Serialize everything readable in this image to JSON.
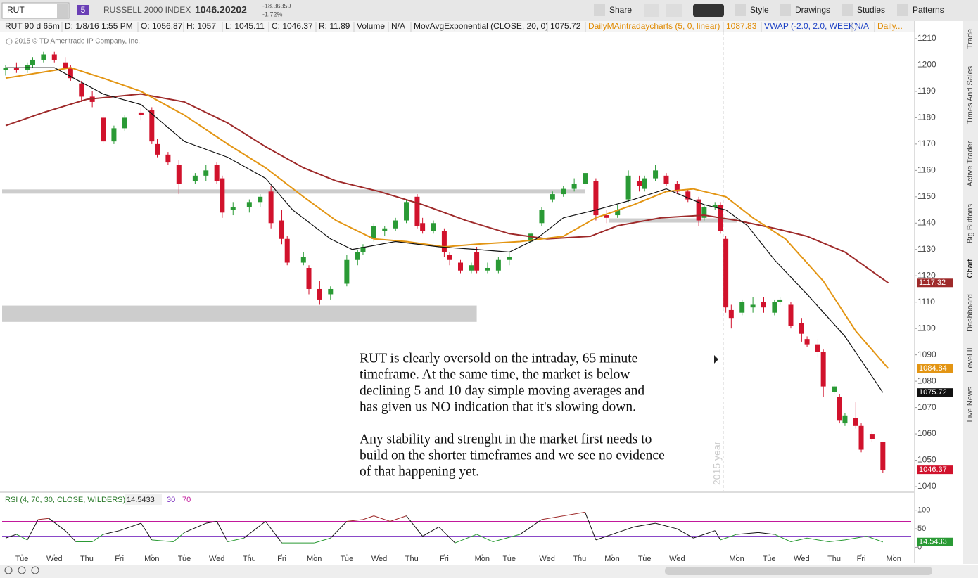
{
  "toolbar": {
    "symbol": "RUT",
    "link_group": "5",
    "description": "RUSSELL 2000 INDEX",
    "last": "1046.20202",
    "net_change": "-18.36359",
    "pct_change": "-1.72%",
    "buttons": [
      "Share",
      "Style",
      "Drawings",
      "Studies",
      "Patterns"
    ]
  },
  "info_bar": [
    {
      "text": "RUT 90 d 65m",
      "color": "#222"
    },
    {
      "text": "D: 1/8/16 1:55 PM",
      "color": "#222"
    },
    {
      "text": "O: 1056.87",
      "color": "#222"
    },
    {
      "text": "H: 1057",
      "color": "#222"
    },
    {
      "text": "L: 1045.11",
      "color": "#222"
    },
    {
      "text": "C: 1046.37",
      "color": "#222"
    },
    {
      "text": "R: 11.89",
      "color": "#222"
    },
    {
      "text": "Volume",
      "color": "#222"
    },
    {
      "text": "N/A",
      "color": "#222"
    },
    {
      "text": "MovAvgExponential (CLOSE, 20, 0)",
      "color": "#222"
    },
    {
      "text": "1075.72",
      "color": "#222"
    },
    {
      "text": "DailyMAintradaycharts (5, 0, linear)",
      "color": "#e08a00"
    },
    {
      "text": "1087.83",
      "color": "#e08a00"
    },
    {
      "text": "VWAP (-2.0, 2.0, WEEK)",
      "color": "#1a3fc4"
    },
    {
      "text": "N/A",
      "color": "#1a3fc4"
    },
    {
      "text": "Daily...",
      "color": "#e08a00"
    }
  ],
  "copyright": "2015 © TD Ameritrade IP Company, Inc.",
  "chart_data": [
    {
      "type": "candlestick",
      "up_color": "#2a9a35",
      "down_color": "#d1122c",
      "xlim": [
        0,
        168
      ],
      "ylim": [
        1038.4,
        1212.4
      ],
      "yticks": [
        1040,
        1050,
        1060,
        1070,
        1080,
        1090,
        1100,
        1110,
        1120,
        1130,
        1140,
        1150,
        1160,
        1170,
        1180,
        1190,
        1200,
        1210
      ],
      "x": [
        0,
        2,
        4,
        5,
        7,
        9,
        11,
        12,
        14,
        16,
        18,
        20,
        22,
        25,
        27,
        28,
        30,
        32,
        35,
        37,
        39,
        40,
        42,
        45,
        47,
        49,
        51,
        52,
        55,
        56,
        58,
        60,
        63,
        65,
        66,
        68,
        70,
        72,
        74,
        76,
        77,
        79,
        81,
        82,
        84,
        86,
        87,
        89,
        91,
        93,
        97,
        99,
        101,
        103,
        105,
        107,
        109,
        111,
        113,
        115,
        117,
        118,
        120,
        122,
        124,
        126,
        128,
        129,
        131,
        132,
        133,
        134,
        136,
        138,
        140,
        142,
        143,
        145,
        147,
        148,
        150,
        151,
        153,
        154,
        155,
        157,
        158,
        160,
        162
      ],
      "open": [
        1198,
        1199,
        1198,
        1200,
        1202,
        1204,
        1201,
        1199,
        1193,
        1188,
        1180,
        1171,
        1176,
        1182,
        1183,
        1170,
        1166,
        1162,
        1156,
        1158,
        1162,
        1157,
        1145,
        1146,
        1148,
        1152,
        1141,
        1134,
        1125,
        1123,
        1115,
        1113,
        1117,
        1126,
        1129,
        1134,
        1137,
        1138,
        1141,
        1150,
        1140,
        1137,
        1137,
        1128,
        1125,
        1122,
        1129,
        1122,
        1122,
        1126,
        1133,
        1140,
        1149,
        1151,
        1153,
        1155,
        1156,
        1143,
        1143,
        1149,
        1156,
        1153,
        1157,
        1158,
        1155,
        1152,
        1149,
        1142,
        1146,
        1147,
        1134,
        1107,
        1106,
        1108,
        1110,
        1106,
        1110,
        1109,
        1102,
        1096,
        1094,
        1091,
        1076,
        1074,
        1064,
        1066,
        1063,
        1060,
        1056.87
      ],
      "high": [
        1200,
        1201,
        1201,
        1203,
        1205,
        1205,
        1203,
        1200,
        1194,
        1190,
        1181,
        1177,
        1181,
        1184,
        1184,
        1172,
        1167,
        1164,
        1159,
        1162,
        1163,
        1158,
        1148,
        1149,
        1151,
        1154,
        1145,
        1135,
        1129,
        1124,
        1118,
        1116,
        1128,
        1130,
        1132,
        1140,
        1139,
        1142,
        1149,
        1151,
        1142,
        1141,
        1138,
        1129,
        1126,
        1125,
        1131,
        1125,
        1127,
        1129,
        1137,
        1146,
        1152,
        1154,
        1157,
        1160,
        1157,
        1145,
        1147,
        1160,
        1158,
        1158,
        1162,
        1159,
        1156,
        1153,
        1150,
        1147,
        1148,
        1148,
        1135,
        1109,
        1111,
        1112,
        1112,
        1111,
        1112,
        1110,
        1104,
        1097,
        1096,
        1092,
        1079,
        1075,
        1068,
        1072,
        1064,
        1061,
        1057
      ],
      "low": [
        1196,
        1197,
        1197,
        1199,
        1201,
        1201,
        1199,
        1194,
        1186,
        1184,
        1170,
        1170,
        1175,
        1179,
        1170,
        1165,
        1162,
        1151,
        1155,
        1156,
        1155,
        1142,
        1143,
        1144,
        1146,
        1138,
        1132,
        1124,
        1124,
        1113,
        1109,
        1111,
        1116,
        1124,
        1128,
        1133,
        1135,
        1137,
        1140,
        1138,
        1136,
        1136,
        1127,
        1124,
        1121,
        1121,
        1121,
        1121,
        1121,
        1124,
        1132,
        1139,
        1148,
        1150,
        1152,
        1154,
        1141,
        1140,
        1142,
        1148,
        1152,
        1152,
        1156,
        1154,
        1151,
        1148,
        1139,
        1141,
        1145,
        1136,
        1106,
        1100,
        1105,
        1106,
        1106,
        1105,
        1109,
        1100,
        1095,
        1093,
        1089,
        1074,
        1075,
        1064,
        1063,
        1062,
        1053,
        1057,
        1045.11
      ],
      "close": [
        1199,
        1198,
        1200,
        1202,
        1204,
        1202,
        1199,
        1195,
        1188,
        1186,
        1171,
        1176,
        1180,
        1181,
        1171,
        1166,
        1163,
        1155,
        1158,
        1160,
        1156,
        1144,
        1146,
        1148,
        1150,
        1140,
        1134,
        1125,
        1127,
        1115,
        1111,
        1115,
        1126,
        1129,
        1131,
        1139,
        1138,
        1141,
        1148,
        1139,
        1137,
        1140,
        1129,
        1126,
        1122,
        1124,
        1122,
        1123,
        1126,
        1127,
        1136,
        1145,
        1151,
        1153,
        1155,
        1159,
        1143,
        1142,
        1145,
        1158,
        1154,
        1157,
        1160,
        1155,
        1152,
        1149,
        1141,
        1146,
        1147,
        1137,
        1108,
        1104,
        1110,
        1109,
        1108,
        1110,
        1111,
        1101,
        1098,
        1094,
        1091,
        1078,
        1078,
        1065,
        1067,
        1063,
        1054,
        1058,
        1046.37
      ],
      "series": [
        {
          "color": "#9e2a2a",
          "x": [
            0,
            7,
            15,
            25,
            33,
            41,
            48,
            55,
            61,
            69,
            77,
            85,
            93,
            100,
            108,
            113,
            121,
            129,
            135,
            142,
            148,
            155,
            163
          ],
          "values": [
            1177,
            1182,
            1187,
            1189,
            1186,
            1178,
            1169,
            1161,
            1156,
            1152,
            1147,
            1141,
            1136,
            1134,
            1135,
            1139,
            1142,
            1143,
            1141,
            1138,
            1135,
            1129,
            1117.32
          ]
        },
        {
          "color": "#e39513",
          "x": [
            0,
            12,
            18,
            25,
            33,
            41,
            48,
            55,
            61,
            68,
            74,
            81,
            87,
            95,
            103,
            109,
            116,
            122,
            127,
            133,
            138,
            144,
            151,
            157,
            163
          ],
          "values": [
            1195,
            1199,
            1195,
            1190,
            1181,
            1170,
            1161,
            1150,
            1141,
            1134,
            1133,
            1131,
            1132,
            1133,
            1135,
            1142,
            1147,
            1152,
            1153,
            1150,
            1142,
            1134,
            1118,
            1099,
            1084.84
          ]
        },
        {
          "color": "#111111",
          "x": [
            0,
            9,
            18,
            25,
            33,
            41,
            48,
            53,
            60,
            64,
            72,
            80,
            87,
            93,
            98,
            103,
            109,
            116,
            122,
            129,
            133,
            137,
            142,
            148,
            155,
            162
          ],
          "values": [
            1199,
            1199,
            1189,
            1185,
            1171,
            1165,
            1157,
            1145,
            1134,
            1130,
            1133,
            1131,
            1130,
            1129,
            1134,
            1142,
            1145,
            1149,
            1153,
            1147,
            1145,
            1139,
            1126,
            1113,
            1097,
            1075.72
          ]
        }
      ],
      "zones": [
        {
          "x": [
            0,
            107
          ],
          "y": [
            1151.2,
            1152.8
          ]
        },
        {
          "x": [
            112,
            135
          ],
          "y": [
            1140.2,
            1141.8
          ]
        },
        {
          "x": [
            0,
            87
          ],
          "y": [
            1102.5,
            1108.7
          ]
        }
      ],
      "year_line": {
        "x": 132.5,
        "label": "2015 year"
      },
      "annotation": [
        [
          "RUT is clearly oversold on the intraday, 65 minute",
          "timeframe.  At the same time, the market is below",
          "declining 5 and 10 day simple moving averages and",
          "has given us NO indication that it's slowing down."
        ],
        [
          "Any stability and strenght in the market first needs to",
          "build on the shorter timeframes and we see no evidence",
          "of that happening yet."
        ]
      ]
    },
    {
      "type": "line",
      "title": "RSI (4, 70, 30, CLOSE, WILDERS)",
      "color": "#111111",
      "color_low": "#2a9a35",
      "color_high": "#9e2a2a",
      "levels": [
        30,
        70
      ],
      "level_colors": [
        "#7a2fc0",
        "#c2189b"
      ],
      "xlim": [
        0,
        168
      ],
      "ylim": [
        -22,
        145
      ],
      "yticks": [
        0,
        50,
        100
      ],
      "xticks": [
        {
          "value": 3,
          "label": "Tue"
        },
        {
          "value": 9,
          "label": "Wed"
        },
        {
          "value": 15,
          "label": "Thu"
        },
        {
          "value": 21,
          "label": "Fri"
        },
        {
          "value": 27,
          "label": "Mon"
        },
        {
          "value": 33,
          "label": "Tue"
        },
        {
          "value": 39,
          "label": "Wed"
        },
        {
          "value": 45,
          "label": "Thu"
        },
        {
          "value": 51,
          "label": "Fri"
        },
        {
          "value": 57,
          "label": "Mon"
        },
        {
          "value": 63,
          "label": "Tue"
        },
        {
          "value": 69,
          "label": "Wed"
        },
        {
          "value": 75,
          "label": "Thu"
        },
        {
          "value": 81,
          "label": "Fri"
        },
        {
          "value": 88,
          "label": "Mon"
        },
        {
          "value": 93,
          "label": "Tue"
        },
        {
          "value": 100,
          "label": "Wed"
        },
        {
          "value": 106,
          "label": "Thu"
        },
        {
          "value": 112,
          "label": "Mon"
        },
        {
          "value": 118,
          "label": "Tue"
        },
        {
          "value": 124,
          "label": "Wed"
        },
        {
          "value": 135,
          "label": "Mon"
        },
        {
          "value": 141,
          "label": "Tue"
        },
        {
          "value": 147,
          "label": "Wed"
        },
        {
          "value": 153,
          "label": "Thu"
        },
        {
          "value": 158,
          "label": "Fri"
        },
        {
          "value": 164,
          "label": "Mon"
        }
      ],
      "x": [
        0,
        2,
        4,
        6,
        8,
        11,
        13,
        16,
        18,
        21,
        25,
        27,
        31,
        33,
        37,
        39,
        41,
        44,
        48,
        51,
        57,
        60,
        63,
        66,
        68,
        71,
        74,
        77,
        80,
        83,
        87,
        90,
        95,
        99,
        103,
        107,
        109,
        113,
        116,
        120,
        124,
        127,
        131,
        132,
        135,
        139,
        142,
        145,
        148,
        152,
        155,
        159,
        162
      ],
      "values": [
        25,
        35,
        20,
        75,
        78,
        45,
        15,
        15,
        35,
        45,
        65,
        20,
        15,
        40,
        65,
        70,
        15,
        25,
        70,
        12,
        12,
        25,
        70,
        75,
        85,
        70,
        85,
        30,
        55,
        12,
        35,
        15,
        35,
        75,
        85,
        95,
        20,
        40,
        55,
        65,
        50,
        25,
        45,
        20,
        35,
        40,
        35,
        15,
        25,
        15,
        20,
        30,
        14.5433
      ]
    }
  ],
  "sidebar": [
    "Trade",
    "Times And Sales",
    "Active Trader",
    "Big Buttons",
    "Chart",
    "Dashboard",
    "Level II",
    "Live News"
  ]
}
